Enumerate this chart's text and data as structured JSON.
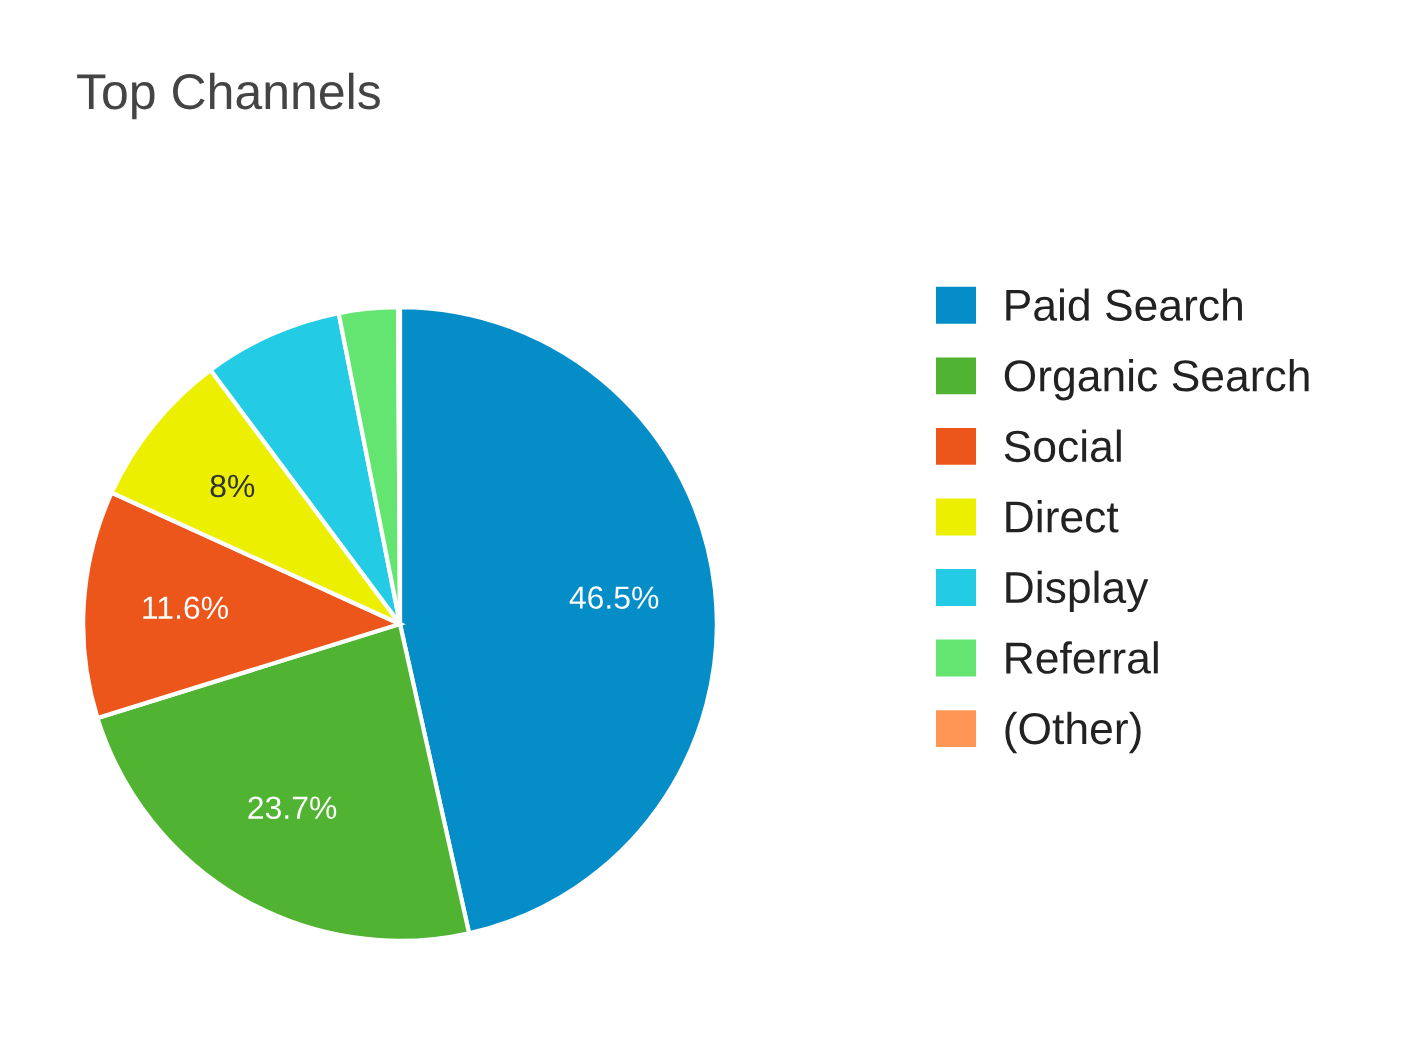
{
  "chart_data": {
    "type": "pie",
    "title": "Top Channels",
    "categories": [
      "Paid Search",
      "Organic Search",
      "Social",
      "Direct",
      "Display",
      "Referral",
      "(Other)"
    ],
    "values": [
      46.5,
      23.7,
      11.6,
      8,
      7.1,
      3.0,
      0.1
    ],
    "colors": [
      "#058dc7",
      "#50b432",
      "#ed561b",
      "#edef00",
      "#24cbe5",
      "#64e572",
      "#ff9655"
    ],
    "value_labels": [
      "46.5%",
      "23.7%",
      "11.6%",
      "8%",
      null,
      null,
      null
    ],
    "legend": "right"
  }
}
